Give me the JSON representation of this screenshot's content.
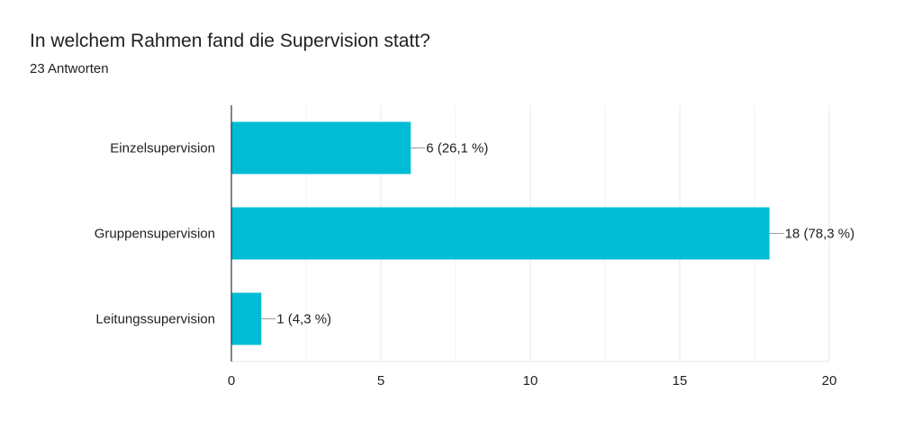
{
  "header": {
    "title": "In welchem Rahmen fand die Supervision statt?",
    "subtitle": "23 Antworten"
  },
  "colors": {
    "bar": "#00bcd4",
    "grid": "#e8e8e8",
    "axis": "#333333",
    "leader": "#999999"
  },
  "chart_data": {
    "type": "bar",
    "orientation": "horizontal",
    "title": "In welchem Rahmen fand die Supervision statt?",
    "subtitle": "23 Antworten",
    "categories": [
      "Einzelsupervision",
      "Gruppensupervision",
      "Leitungssupervision"
    ],
    "values": [
      6,
      18,
      1
    ],
    "data_labels": [
      "6 (26,1 %)",
      "18 (78,3 %)",
      "1 (4,3 %)"
    ],
    "xlim": [
      0,
      20
    ],
    "xticks": [
      0,
      5,
      10,
      15,
      20
    ],
    "xtick_labels": [
      "0",
      "5",
      "10",
      "15",
      "20"
    ],
    "grid": true,
    "legend": "none"
  }
}
